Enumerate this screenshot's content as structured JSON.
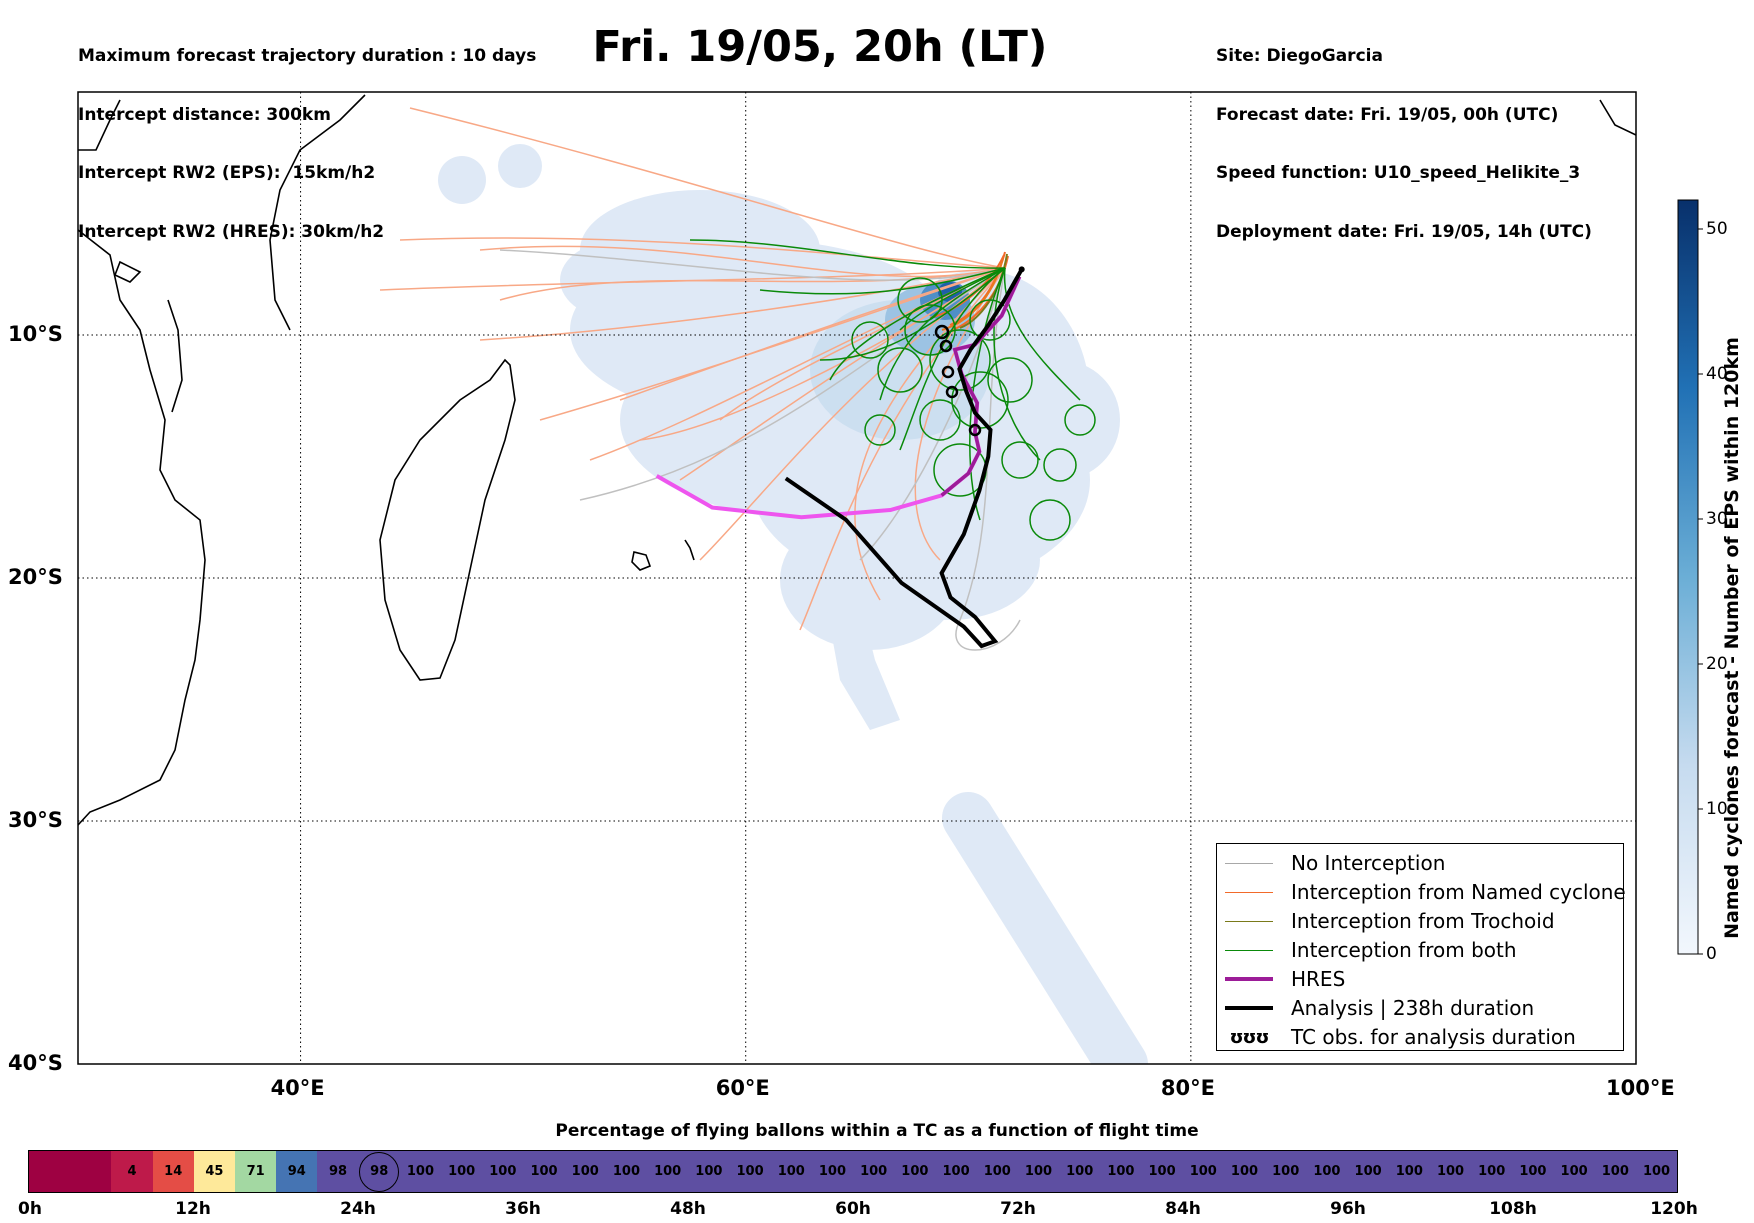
{
  "header_left": [
    "Maximum forecast trajectory duration : 10 days",
    "Intercept distance: 300km",
    "Intercept RW2 (EPS):  15km/h2",
    "Intercept RW2 (HRES): 30km/h2"
  ],
  "header_right": [
    "Site: DiegoGarcia",
    "Forecast date: Fri. 19/05, 00h (UTC)",
    "Speed function: U10_speed_Helikite_3",
    "Deployment date: Fri. 19/05, 14h (UTC)"
  ],
  "map": {
    "title": "Fri. 19/05, 20h (LT)",
    "lon_range": [
      30,
      100
    ],
    "lat_range": [
      0,
      -40
    ],
    "lon_ticks": [
      "40°E",
      "60°E",
      "80°E",
      "100°E"
    ],
    "lat_ticks": [
      "10°S",
      "20°S",
      "30°S",
      "40°S"
    ],
    "grid": "dotted",
    "site_marker": {
      "lon": 72.4,
      "lat": -7.3
    },
    "analysis_track": [
      [
        72.4,
        -7.3
      ],
      [
        71.6,
        -8.6
      ],
      [
        70.9,
        -9.6
      ],
      [
        70.1,
        -10.6
      ],
      [
        69.6,
        -11.4
      ],
      [
        69.9,
        -12.3
      ],
      [
        70.3,
        -13.2
      ],
      [
        71.0,
        -13.9
      ],
      [
        70.9,
        -15.0
      ],
      [
        70.5,
        -16.4
      ],
      [
        69.8,
        -18.2
      ],
      [
        68.8,
        -19.8
      ],
      [
        69.2,
        -20.8
      ],
      [
        70.3,
        -21.6
      ],
      [
        71.2,
        -22.6
      ],
      [
        70.6,
        -22.8
      ],
      [
        69.8,
        -22.0
      ],
      [
        67.0,
        -20.2
      ],
      [
        64.5,
        -17.6
      ],
      [
        61.8,
        -15.9
      ]
    ],
    "hres_track": [
      [
        72.3,
        -7.6
      ],
      [
        71.5,
        -9.2
      ],
      [
        70.3,
        -10.4
      ],
      [
        69.4,
        -10.6
      ],
      [
        69.7,
        -11.6
      ],
      [
        70.4,
        -12.8
      ],
      [
        70.3,
        -14.0
      ],
      [
        70.5,
        -14.8
      ],
      [
        70.0,
        -15.7
      ],
      [
        68.8,
        -16.6
      ],
      [
        66.5,
        -17.2
      ],
      [
        62.5,
        -17.5
      ],
      [
        58.5,
        -17.1
      ],
      [
        56.0,
        -15.8
      ]
    ],
    "colors": {
      "no_interception": "#c0c0c0",
      "named_cyclone": "#f26a2a",
      "trochoid": "#7a7a1a",
      "both": "#0a8a0a",
      "hres": "#9c1c98",
      "hres_alt": "#ee55ee",
      "analysis": "#000000",
      "eps_salmon": "#f8a886"
    }
  },
  "legend": [
    {
      "label": "No Interception",
      "color": "#a8a8a8",
      "width": 1.5
    },
    {
      "label": "Interception from Named cyclone",
      "color": "#f26a2a",
      "width": 1.5
    },
    {
      "label": "Interception from Trochoid",
      "color": "#7a7a1a",
      "width": 1.5
    },
    {
      "label": "Interception from both",
      "color": "#0a8a0a",
      "width": 1.5
    },
    {
      "label": "HRES",
      "color": "#9c1c98",
      "width": 4
    },
    {
      "label": "Analysis | 238h duration",
      "color": "#000000",
      "width": 4
    },
    {
      "label": "TC obs. for analysis duration",
      "symbol": "ʊʊʊ"
    }
  ],
  "colorbar": {
    "label": "Named cyclones forecast - Number of EPS within 120km",
    "min": 0,
    "max": 52,
    "ticks": [
      "0",
      "10",
      "20",
      "30",
      "40",
      "50"
    ],
    "color_low": "#e3edf8",
    "color_high": "#08306b"
  },
  "percentage_bar": {
    "title": "Percentage of flying ballons within a TC as a function of flight time",
    "values": [
      "",
      "",
      "4",
      "14",
      "45",
      "71",
      "94",
      "98",
      "98",
      "100",
      "100",
      "100",
      "100",
      "100",
      "100",
      "100",
      "100",
      "100",
      "100",
      "100",
      "100",
      "100",
      "100",
      "100",
      "100",
      "100",
      "100",
      "100",
      "100",
      "100",
      "100",
      "100",
      "100",
      "100",
      "100",
      "100",
      "100",
      "100",
      "100",
      "100"
    ],
    "colors": [
      "#9e0142",
      "#9e0142",
      "#be1a4a",
      "#e44d46",
      "#fee99a",
      "#a3d8a2",
      "#4574b3",
      "#5e4fa2",
      "#5e4fa2",
      "#5e4fa2",
      "#5e4fa2",
      "#5e4fa2",
      "#5e4fa2",
      "#5e4fa2",
      "#5e4fa2",
      "#5e4fa2",
      "#5e4fa2",
      "#5e4fa2",
      "#5e4fa2",
      "#5e4fa2",
      "#5e4fa2",
      "#5e4fa2",
      "#5e4fa2",
      "#5e4fa2",
      "#5e4fa2",
      "#5e4fa2",
      "#5e4fa2",
      "#5e4fa2",
      "#5e4fa2",
      "#5e4fa2",
      "#5e4fa2",
      "#5e4fa2",
      "#5e4fa2",
      "#5e4fa2",
      "#5e4fa2",
      "#5e4fa2",
      "#5e4fa2",
      "#5e4fa2",
      "#5e4fa2",
      "#5e4fa2"
    ],
    "highlight_index": 8,
    "time_ticks": [
      "0h",
      "12h",
      "24h",
      "36h",
      "48h",
      "60h",
      "72h",
      "84h",
      "96h",
      "108h",
      "120h"
    ]
  }
}
